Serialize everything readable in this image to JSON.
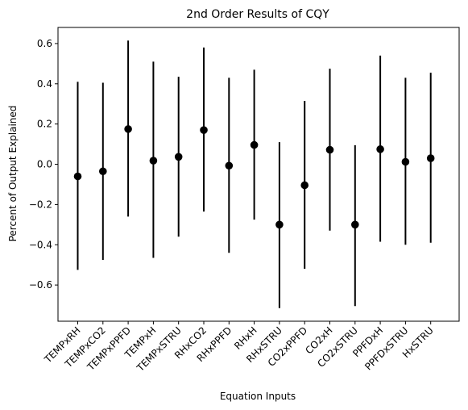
{
  "chart_data": {
    "type": "scatter",
    "title": "2nd Order Results of CQY",
    "xlabel": "Equation Inputs",
    "ylabel": "Percent of Output Explained",
    "ylim": [
      -0.78,
      0.68
    ],
    "yticks": [
      -0.6,
      -0.4,
      -0.2,
      0.0,
      0.2,
      0.4,
      0.6
    ],
    "ytick_labels": [
      "−0.6",
      "−0.4",
      "−0.2",
      "0.0",
      "0.2",
      "0.4",
      "0.6"
    ],
    "grid": false,
    "marker_color": "#000000",
    "errorbar_color": "#000000",
    "categories": [
      "TEMPxRH",
      "TEMPxCO2",
      "TEMPxPPFD",
      "TEMPxH",
      "TEMPxSTRU",
      "RHxCO2",
      "RHxPPFD",
      "RHxH",
      "RHxSTRU",
      "CO2xPPFD",
      "CO2xH",
      "CO2xSTRU",
      "PPFDxH",
      "PPFDxSTRU",
      "HxSTRU"
    ],
    "values": [
      -0.06,
      -0.035,
      0.175,
      0.018,
      0.037,
      0.17,
      -0.007,
      0.096,
      -0.3,
      -0.104,
      0.072,
      -0.3,
      0.075,
      0.012,
      0.03
    ],
    "lower": [
      -0.525,
      -0.475,
      -0.26,
      -0.465,
      -0.36,
      -0.235,
      -0.44,
      -0.275,
      -0.715,
      -0.52,
      -0.33,
      -0.705,
      -0.385,
      -0.4,
      -0.39
    ],
    "upper": [
      0.41,
      0.405,
      0.615,
      0.51,
      0.435,
      0.58,
      0.43,
      0.47,
      0.11,
      0.315,
      0.475,
      0.095,
      0.54,
      0.43,
      0.455
    ]
  }
}
